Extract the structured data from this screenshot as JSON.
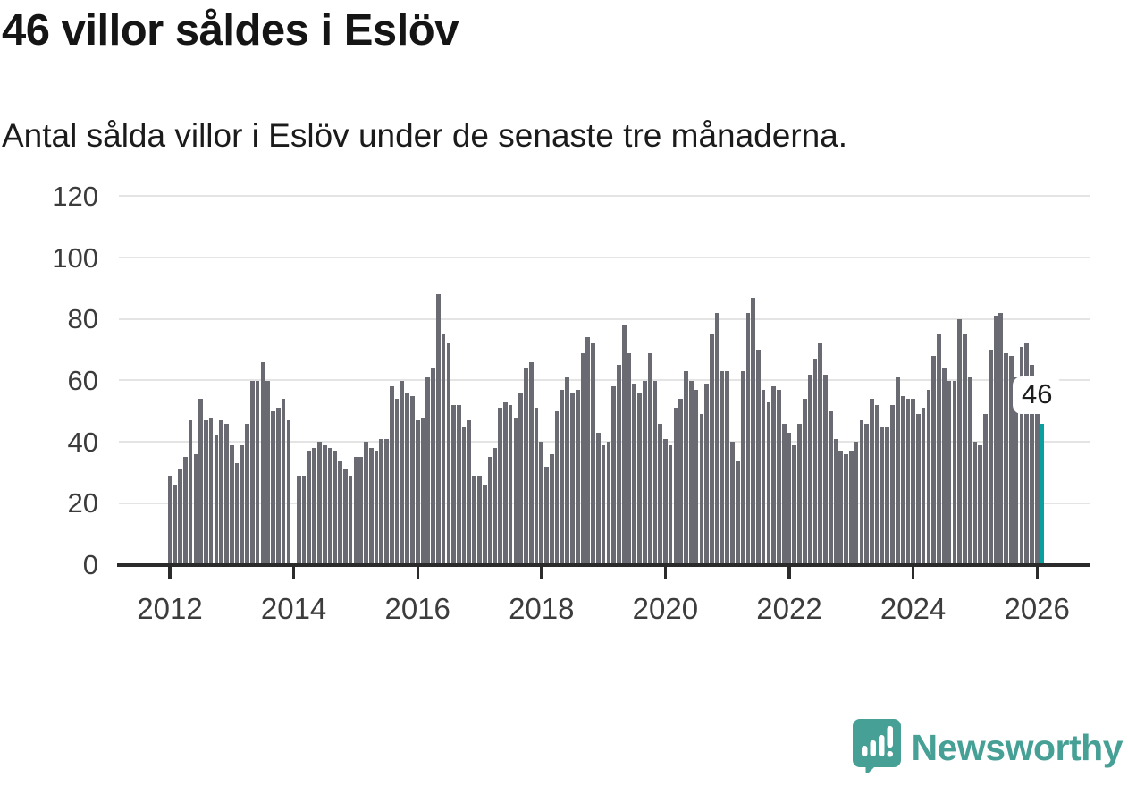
{
  "title": "46 villor såldes i Eslöv",
  "subtitle": "Antal sålda villor i Eslöv under de senaste tre månaderna.",
  "annotation": {
    "label": "46"
  },
  "logo": {
    "text": "Newsworthy",
    "icon": "newsworthy-speech-bubble-chart-icon"
  },
  "colors": {
    "bar": "#6a6a72",
    "highlight": "#0ba0a0",
    "grid": "#e4e4e4",
    "axis": "#2b2b2b",
    "axis_text": "#3c3c3c",
    "title_text": "#151515",
    "logo_teal": "#46a095",
    "background": "#ffffff"
  },
  "chart_data": {
    "type": "bar",
    "title": "46 villor såldes i Eslöv",
    "subtitle": "Antal sålda villor i Eslöv under de senaste tre månaderna.",
    "xlabel": "",
    "ylabel": "",
    "frequency": "monthly",
    "x_start": "2012-01",
    "x_end": "2026-02",
    "ylim": [
      0,
      120
    ],
    "grid": "horizontal",
    "y_ticks": [
      0,
      20,
      40,
      60,
      80,
      100,
      120
    ],
    "x_ticks": [
      2012,
      2014,
      2016,
      2018,
      2020,
      2022,
      2024,
      2026
    ],
    "highlight_last_bar": true,
    "last_value_label": "46",
    "values": [
      29,
      26,
      31,
      35,
      47,
      36,
      54,
      47,
      48,
      42,
      47,
      46,
      39,
      33,
      39,
      46,
      60,
      60,
      66,
      60,
      50,
      51,
      54,
      47,
      null,
      29,
      29,
      37,
      38,
      40,
      39,
      38,
      37,
      34,
      31,
      29,
      35,
      35,
      40,
      38,
      37,
      41,
      41,
      58,
      54,
      60,
      56,
      55,
      47,
      48,
      61,
      64,
      88,
      75,
      72,
      52,
      52,
      45,
      47,
      29,
      29,
      26,
      35,
      38,
      51,
      53,
      52,
      48,
      56,
      64,
      66,
      51,
      40,
      32,
      36,
      50,
      57,
      61,
      56,
      57,
      69,
      74,
      72,
      43,
      39,
      40,
      58,
      65,
      78,
      69,
      59,
      56,
      60,
      69,
      60,
      46,
      41,
      39,
      51,
      54,
      63,
      60,
      57,
      49,
      59,
      75,
      82,
      63,
      63,
      40,
      34,
      63,
      82,
      87,
      70,
      57,
      53,
      58,
      57,
      46,
      43,
      39,
      46,
      54,
      62,
      67,
      72,
      62,
      50,
      41,
      37,
      36,
      37,
      40,
      47,
      46,
      54,
      52,
      45,
      45,
      52,
      61,
      55,
      54,
      54,
      49,
      51,
      57,
      68,
      75,
      64,
      60,
      60,
      80,
      75,
      61,
      40,
      39,
      49,
      70,
      81,
      82,
      69,
      68,
      61,
      71,
      72,
      65,
      50,
      46
    ]
  }
}
